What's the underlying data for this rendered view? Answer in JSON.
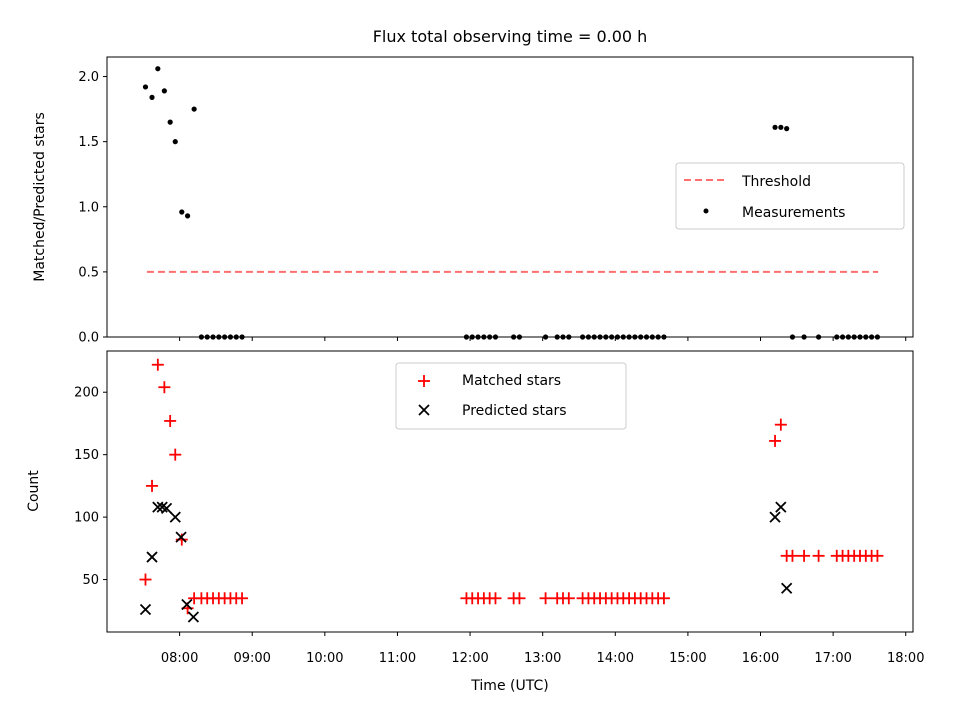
{
  "chart_data": [
    {
      "type": "scatter",
      "title": "Flux total observing time = 0.00 h",
      "xlabel": "",
      "ylabel": "Matched/Predicted stars",
      "x_unit": "hours UTC",
      "xlim": [
        7.0,
        18.1
      ],
      "ylim": [
        0.0,
        2.15
      ],
      "yticks": [
        "0.0",
        "0.5",
        "1.0",
        "1.5",
        "2.0"
      ],
      "grid": false,
      "legend_position": "center-right",
      "threshold": {
        "name": "Threshold",
        "color": "#ff6f6f",
        "style": "dashed",
        "value": 0.5,
        "x_range": [
          7.55,
          17.62
        ]
      },
      "series": [
        {
          "name": "Measurements",
          "color": "#000000",
          "marker": "dot",
          "x": [
            7.53,
            7.62,
            7.7,
            7.79,
            7.87,
            7.94,
            8.03,
            8.11,
            8.2,
            8.3,
            8.38,
            8.46,
            8.54,
            8.62,
            8.7,
            8.78,
            8.86,
            11.95,
            12.03,
            12.11,
            12.19,
            12.27,
            12.35,
            12.6,
            12.68,
            13.04,
            13.2,
            13.28,
            13.36,
            13.55,
            13.63,
            13.71,
            13.79,
            13.87,
            13.95,
            14.03,
            14.11,
            14.19,
            14.27,
            14.35,
            14.43,
            14.51,
            14.59,
            14.67,
            16.2,
            16.28,
            16.36,
            16.44,
            16.6,
            16.8,
            17.05,
            17.13,
            17.21,
            17.29,
            17.37,
            17.45,
            17.53,
            17.61
          ],
          "y": [
            1.92,
            1.84,
            2.06,
            1.89,
            1.65,
            1.5,
            0.96,
            0.93,
            1.75,
            0,
            0,
            0,
            0,
            0,
            0,
            0,
            0,
            0,
            0,
            0,
            0,
            0,
            0,
            0,
            0,
            0,
            0,
            0,
            0,
            0,
            0,
            0,
            0,
            0,
            0,
            0,
            0,
            0,
            0,
            0,
            0,
            0,
            0,
            0,
            1.61,
            1.61,
            1.6,
            0,
            0,
            0,
            0,
            0,
            0,
            0,
            0,
            0,
            0,
            0
          ]
        }
      ],
      "xticks": [
        "08:00",
        "09:00",
        "10:00",
        "11:00",
        "12:00",
        "13:00",
        "14:00",
        "15:00",
        "16:00",
        "17:00",
        "18:00"
      ]
    },
    {
      "type": "scatter",
      "title": "",
      "xlabel": "Time (UTC)",
      "ylabel": "Count",
      "x_unit": "hours UTC",
      "xlim": [
        7.0,
        18.1
      ],
      "ylim": [
        8,
        233
      ],
      "yticks": [
        "50",
        "100",
        "150",
        "200"
      ],
      "xticks": [
        "08:00",
        "09:00",
        "10:00",
        "11:00",
        "12:00",
        "13:00",
        "14:00",
        "15:00",
        "16:00",
        "17:00",
        "18:00"
      ],
      "grid": false,
      "legend_position": "top-center",
      "series": [
        {
          "name": "Matched stars",
          "color": "#ff0000",
          "marker": "plus",
          "x": [
            7.53,
            7.62,
            7.7,
            7.79,
            7.87,
            7.94,
            8.03,
            8.11,
            8.2,
            8.3,
            8.38,
            8.46,
            8.54,
            8.62,
            8.7,
            8.78,
            8.86,
            11.95,
            12.03,
            12.11,
            12.19,
            12.27,
            12.35,
            12.6,
            12.68,
            13.04,
            13.2,
            13.28,
            13.36,
            13.55,
            13.63,
            13.71,
            13.79,
            13.87,
            13.95,
            14.03,
            14.11,
            14.19,
            14.27,
            14.35,
            14.43,
            14.51,
            14.59,
            14.67,
            16.2,
            16.28,
            16.36,
            16.44,
            16.6,
            16.8,
            17.05,
            17.13,
            17.21,
            17.29,
            17.37,
            17.45,
            17.53,
            17.61
          ],
          "y": [
            50,
            125,
            222,
            204,
            177,
            150,
            82,
            27,
            35,
            35,
            35,
            35,
            35,
            35,
            35,
            35,
            35,
            35,
            35,
            35,
            35,
            35,
            35,
            35,
            35,
            35,
            35,
            35,
            35,
            35,
            35,
            35,
            35,
            35,
            35,
            35,
            35,
            35,
            35,
            35,
            35,
            35,
            35,
            35,
            161,
            174,
            69,
            69,
            69,
            69,
            69,
            69,
            69,
            69,
            69,
            69,
            69,
            69
          ]
        },
        {
          "name": "Predicted stars",
          "color": "#000000",
          "marker": "cross",
          "x": [
            7.53,
            7.62,
            7.7,
            7.76,
            7.82,
            7.94,
            8.02,
            8.1,
            8.19,
            16.2,
            16.28,
            16.36
          ],
          "y": [
            26,
            68,
            108,
            108,
            107,
            100,
            84,
            30,
            20,
            100,
            108,
            43
          ]
        }
      ]
    }
  ]
}
